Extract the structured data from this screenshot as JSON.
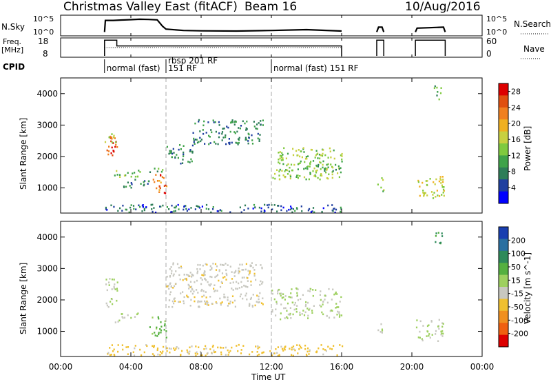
{
  "header": {
    "title": "Christmas Valley East (fitACF)",
    "beam": "Beam 16",
    "date": "10/Aug/2016"
  },
  "nsky_panel": {
    "left_label": "N.Sky",
    "left_ticks": [
      "10^5",
      "10^0"
    ],
    "right_ticks": [
      "10^5",
      "10^0"
    ],
    "right_label": "N.Search",
    "right_legend_style": "dotted"
  },
  "freq_panel": {
    "left_label_lines": [
      "Freq.",
      "[MHz]"
    ],
    "left_ticks": [
      "18",
      "8"
    ],
    "right_ticks": [
      "60",
      "0"
    ],
    "right_label": "Nave",
    "right_legend_style": "dotted"
  },
  "cpid": {
    "label": "CPID",
    "entries": [
      {
        "start_hour": 2.5,
        "lines": [
          "normal (fast)"
        ]
      },
      {
        "start_hour": 6.0,
        "lines": [
          "rbsp 201 RF",
          "151 RF"
        ]
      },
      {
        "start_hour": 12.0,
        "lines": [
          "normal (fast)  151 RF"
        ]
      }
    ]
  },
  "time_axis": {
    "label": "Time UT",
    "ticks": [
      "00:00",
      "04:00",
      "08:00",
      "12:00",
      "16:00",
      "20:00",
      "00:00"
    ],
    "range_hours": [
      0,
      24
    ],
    "dashed_markers_hours": [
      6.0,
      12.0
    ]
  },
  "chart_data": [
    {
      "type": "line",
      "title": "N.Sky",
      "x_unit": "hours UT",
      "segments": [
        {
          "x": [
            2.5,
            2.55,
            3.0,
            3.5,
            4.0,
            4.5,
            5.0,
            5.5,
            5.8,
            6.0,
            7.0,
            8.0,
            10.0,
            12.0,
            14.0,
            16.0
          ],
          "y": [
            0.2,
            0.8,
            0.8,
            0.82,
            0.84,
            0.86,
            0.85,
            0.83,
            0.5,
            0.35,
            0.28,
            0.26,
            0.25,
            0.28,
            0.32,
            0.25
          ]
        },
        {
          "x": [
            18.0,
            18.1,
            18.3,
            18.4
          ],
          "y": [
            0.2,
            0.45,
            0.45,
            0.2
          ]
        },
        {
          "x": [
            20.2,
            20.3,
            21.0,
            21.8,
            21.9
          ],
          "y": [
            0.2,
            0.4,
            0.42,
            0.45,
            0.2
          ]
        }
      ],
      "ylim": [
        0,
        1
      ]
    },
    {
      "type": "line",
      "title": "Freq.",
      "ylabel": "[MHz]",
      "ylim": [
        8,
        18
      ],
      "series": [
        {
          "x": [
            2.5,
            2.5,
            3.2,
            3.2,
            16.0,
            16.0
          ],
          "y": [
            8,
            17.5,
            17.5,
            14,
            14,
            8
          ]
        },
        {
          "x": [
            18.0,
            18.0,
            18.4,
            18.4
          ],
          "y": [
            8,
            17.5,
            17.5,
            8
          ]
        },
        {
          "x": [
            20.2,
            20.2,
            21.9,
            21.9
          ],
          "y": [
            8,
            17.5,
            17.5,
            8
          ]
        }
      ],
      "nave_dotted": {
        "x": [
          2.5,
          2.5,
          16.0,
          16.0
        ],
        "y": [
          0,
          30,
          30,
          0
        ]
      }
    },
    {
      "type": "heatmap",
      "title": "Power",
      "xlabel": "Time UT",
      "ylabel": "Slant Range [km]",
      "xlim": [
        0,
        24
      ],
      "ylim": [
        200,
        4500
      ],
      "y_ticks": [
        1000,
        2000,
        3000,
        4000
      ],
      "colorbar": {
        "label": "Power [dB]",
        "ticks": [
          4,
          8,
          12,
          16,
          20,
          24,
          28
        ],
        "colors": [
          "#0000ff",
          "#1f3f9f",
          "#2e7d58",
          "#3fa34a",
          "#7fca3f",
          "#c8d040",
          "#f0b020",
          "#f08020",
          "#e05010",
          "#dd0000"
        ],
        "range": [
          0,
          30
        ]
      },
      "regions": [
        {
          "t": [
            2.5,
            3.2
          ],
          "r": [
            2000,
            2700
          ],
          "v": 26
        },
        {
          "t": [
            2.5,
            3.2
          ],
          "r": [
            2400,
            2750
          ],
          "v": 14
        },
        {
          "t": [
            3.0,
            4.5
          ],
          "r": [
            1300,
            1600
          ],
          "v": 12
        },
        {
          "t": [
            3.5,
            5.0
          ],
          "r": [
            1000,
            1300
          ],
          "v": 8
        },
        {
          "t": [
            5.2,
            6.0
          ],
          "r": [
            800,
            1500
          ],
          "v": 24
        },
        {
          "t": [
            5.0,
            5.8
          ],
          "r": [
            1500,
            1700
          ],
          "v": 10
        },
        {
          "t": [
            6.0,
            7.5
          ],
          "r": [
            1800,
            2400
          ],
          "v": 8
        },
        {
          "t": [
            7.5,
            11.5
          ],
          "r": [
            2400,
            3200
          ],
          "v": 8
        },
        {
          "t": [
            12.0,
            16.0
          ],
          "r": [
            1300,
            2300
          ],
          "v": 14
        },
        {
          "t": [
            14.5,
            16.0
          ],
          "r": [
            1500,
            1800
          ],
          "v": 10
        },
        {
          "t": [
            18.0,
            18.4
          ],
          "r": [
            900,
            1400
          ],
          "v": 14
        },
        {
          "t": [
            20.2,
            21.8
          ],
          "r": [
            700,
            1400
          ],
          "v": 16
        },
        {
          "t": [
            21.2,
            21.7
          ],
          "r": [
            3800,
            4300
          ],
          "v": 12
        },
        {
          "t": [
            2.5,
            16.0
          ],
          "r": [
            200,
            500
          ],
          "v": 6
        }
      ]
    },
    {
      "type": "heatmap",
      "title": "Velocity",
      "xlabel": "Time UT",
      "ylabel": "Slant Range [km]",
      "xlim": [
        0,
        24
      ],
      "ylim": [
        200,
        4500
      ],
      "y_ticks": [
        1000,
        2000,
        3000,
        4000
      ],
      "colorbar": {
        "label": "Velocity [m s^-1]",
        "ticks": [
          200,
          100,
          50,
          15,
          -15,
          -50,
          -100,
          -200
        ],
        "colors": [
          "#1a3fb0",
          "#2a6fa0",
          "#2e8a5a",
          "#55b040",
          "#9ed060",
          "#c8c8c0",
          "#f0c030",
          "#f09020",
          "#f06010",
          "#dd0000"
        ],
        "range": [
          -250,
          250
        ]
      },
      "regions": [
        {
          "t": [
            2.5,
            3.2
          ],
          "r": [
            1800,
            2700
          ],
          "v": 0
        },
        {
          "t": [
            3.0,
            4.5
          ],
          "r": [
            1300,
            1600
          ],
          "v": 0
        },
        {
          "t": [
            5.0,
            6.0
          ],
          "r": [
            800,
            1500
          ],
          "v": 60
        },
        {
          "t": [
            6.0,
            11.5
          ],
          "r": [
            1800,
            3200
          ],
          "v": -40
        },
        {
          "t": [
            12.0,
            16.0
          ],
          "r": [
            1400,
            2400
          ],
          "v": 0
        },
        {
          "t": [
            18.0,
            18.4
          ],
          "r": [
            900,
            1400
          ],
          "v": 0
        },
        {
          "t": [
            20.2,
            21.8
          ],
          "r": [
            700,
            1400
          ],
          "v": 0
        },
        {
          "t": [
            21.2,
            21.7
          ],
          "r": [
            3800,
            4300
          ],
          "v": 100
        },
        {
          "t": [
            2.5,
            16.0
          ],
          "r": [
            200,
            600
          ],
          "v": -60
        }
      ]
    }
  ]
}
